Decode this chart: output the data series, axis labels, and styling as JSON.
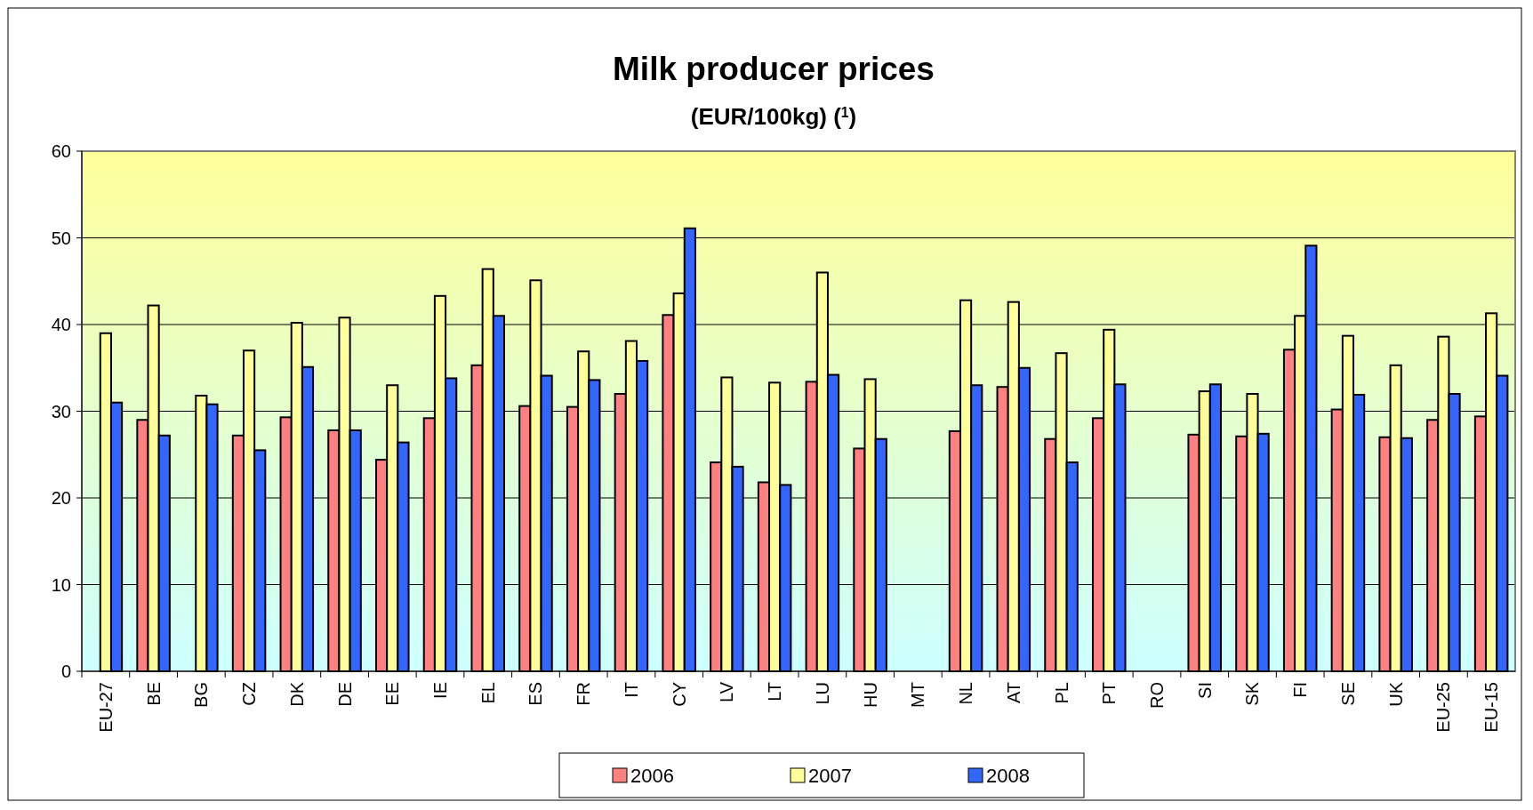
{
  "chart_data": {
    "type": "bar",
    "title": "Milk producer prices",
    "subtitle": "(EUR/100kg) ($^{1}$)",
    "categories": [
      "EU-27",
      "BE",
      "BG",
      "CZ",
      "DK",
      "DE",
      "EE",
      "IE",
      "EL",
      "ES",
      "FR",
      "IT",
      "CY",
      "LV",
      "LT",
      "LU",
      "HU",
      "MT",
      "NL",
      "AT",
      "PL",
      "PT",
      "RO",
      "SI",
      "SK",
      "FI",
      "SE",
      "UK",
      "EU-25",
      "EU-15"
    ],
    "series": [
      {
        "name": "2006",
        "color": "#ff8080",
        "values": [
          null,
          29.0,
          null,
          27.2,
          29.3,
          27.8,
          24.4,
          29.2,
          35.3,
          30.6,
          30.5,
          32.0,
          41.1,
          24.1,
          21.8,
          33.4,
          25.7,
          null,
          27.7,
          32.8,
          26.8,
          29.2,
          null,
          27.3,
          27.1,
          37.1,
          30.2,
          27.0,
          29.0,
          29.4
        ]
      },
      {
        "name": "2007",
        "color": "#ffff99",
        "values": [
          39.0,
          42.2,
          31.8,
          37.0,
          40.2,
          40.8,
          33.0,
          43.3,
          46.4,
          45.1,
          36.9,
          38.1,
          43.6,
          33.9,
          33.3,
          46.0,
          33.7,
          null,
          42.8,
          42.6,
          36.7,
          39.4,
          null,
          32.3,
          32.0,
          41.0,
          38.7,
          35.3,
          38.6,
          41.3
        ]
      },
      {
        "name": "2008",
        "color": "#3366ff",
        "values": [
          31.0,
          27.2,
          30.8,
          25.5,
          35.1,
          27.8,
          26.4,
          33.8,
          41.0,
          34.1,
          33.6,
          35.8,
          51.1,
          23.6,
          21.5,
          34.2,
          26.8,
          null,
          33.0,
          35.0,
          24.1,
          33.1,
          null,
          33.1,
          27.4,
          49.1,
          31.9,
          26.9,
          32.0,
          34.1
        ]
      }
    ],
    "ylim": [
      0,
      60
    ],
    "yticks": [
      0,
      10,
      20,
      30,
      40,
      50,
      60
    ],
    "grid": "y",
    "legend": "bottom"
  }
}
